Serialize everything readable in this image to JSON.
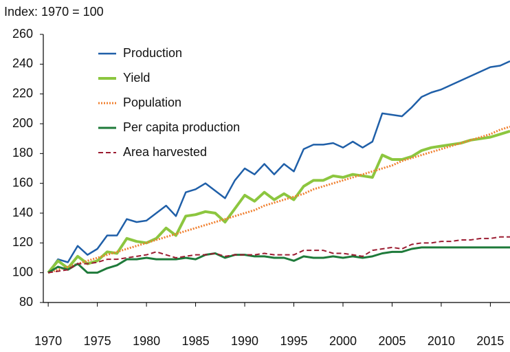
{
  "chart_data": {
    "type": "line",
    "subtitle": "Index: 1970 = 100",
    "x": [
      1970,
      1971,
      1972,
      1973,
      1974,
      1975,
      1976,
      1977,
      1978,
      1979,
      1980,
      1981,
      1982,
      1983,
      1984,
      1985,
      1986,
      1987,
      1988,
      1989,
      1990,
      1991,
      1992,
      1993,
      1994,
      1995,
      1996,
      1997,
      1998,
      1999,
      2000,
      2001,
      2002,
      2003,
      2004,
      2005,
      2006,
      2007,
      2008,
      2009,
      2010,
      2011,
      2012,
      2013,
      2014,
      2015,
      2016,
      2017
    ],
    "series": [
      {
        "name": "Production",
        "color": "#1f5fa8",
        "style": "solid",
        "width": 2.5,
        "values": [
          100,
          109,
          107,
          118,
          112,
          116,
          125,
          125,
          136,
          134,
          135,
          140,
          145,
          138,
          154,
          156,
          160,
          155,
          150,
          162,
          170,
          166,
          173,
          166,
          173,
          168,
          183,
          186,
          186,
          187,
          184,
          188,
          184,
          188,
          207,
          206,
          205,
          211,
          218,
          221,
          223,
          226,
          229,
          232,
          235,
          238,
          239,
          242
        ]
      },
      {
        "name": "Yield",
        "color": "#8cc63f",
        "style": "solid",
        "width": 4,
        "values": [
          100,
          108,
          103,
          111,
          106,
          108,
          114,
          113,
          123,
          121,
          120,
          123,
          130,
          125,
          138,
          139,
          141,
          140,
          134,
          143,
          152,
          148,
          154,
          149,
          153,
          149,
          158,
          162,
          162,
          165,
          164,
          166,
          165,
          164,
          179,
          176,
          176,
          178,
          182,
          184,
          185,
          186,
          187,
          189,
          190,
          191,
          193,
          195
        ]
      },
      {
        "name": "Population",
        "color": "#f08030",
        "style": "dotted",
        "width": 3,
        "values": [
          100,
          102,
          104,
          106,
          108,
          110,
          112,
          114,
          116,
          118,
          120,
          122,
          124,
          126,
          128,
          130,
          132,
          134,
          136,
          138,
          140,
          142,
          145,
          147,
          149,
          151,
          153,
          156,
          158,
          160,
          162,
          164,
          166,
          168,
          170,
          172,
          175,
          177,
          179,
          181,
          183,
          185,
          187,
          189,
          191,
          193,
          196,
          198
        ]
      },
      {
        "name": "Per capita production",
        "color": "#1e7a3a",
        "style": "solid",
        "width": 3,
        "values": [
          100,
          104,
          102,
          106,
          100,
          100,
          103,
          105,
          109,
          109,
          110,
          109,
          109,
          109,
          110,
          109,
          112,
          113,
          110,
          112,
          112,
          111,
          111,
          110,
          110,
          108,
          111,
          110,
          110,
          111,
          110,
          111,
          110,
          111,
          113,
          114,
          114,
          116,
          117,
          117,
          117,
          117,
          117,
          117,
          117,
          117,
          117,
          117
        ]
      },
      {
        "name": "Area harvested",
        "color": "#9b1b30",
        "style": "dashed",
        "width": 2,
        "values": [
          100,
          101,
          102,
          106,
          106,
          107,
          109,
          109,
          110,
          111,
          112,
          114,
          112,
          110,
          111,
          112,
          112,
          113,
          111,
          112,
          112,
          112,
          113,
          112,
          112,
          112,
          115,
          115,
          115,
          113,
          113,
          112,
          111,
          115,
          116,
          117,
          116,
          119,
          120,
          120,
          121,
          121,
          122,
          122,
          123,
          123,
          124,
          124
        ]
      }
    ],
    "xlim": [
      1969.5,
      2017
    ],
    "xticks": [
      1970,
      1975,
      1980,
      1985,
      1990,
      1995,
      2000,
      2005,
      2010,
      2015
    ],
    "ylim": [
      80,
      260
    ],
    "yticks": [
      80,
      100,
      120,
      140,
      160,
      180,
      200,
      220,
      240,
      260
    ],
    "grid": false,
    "legend": "upper left"
  }
}
